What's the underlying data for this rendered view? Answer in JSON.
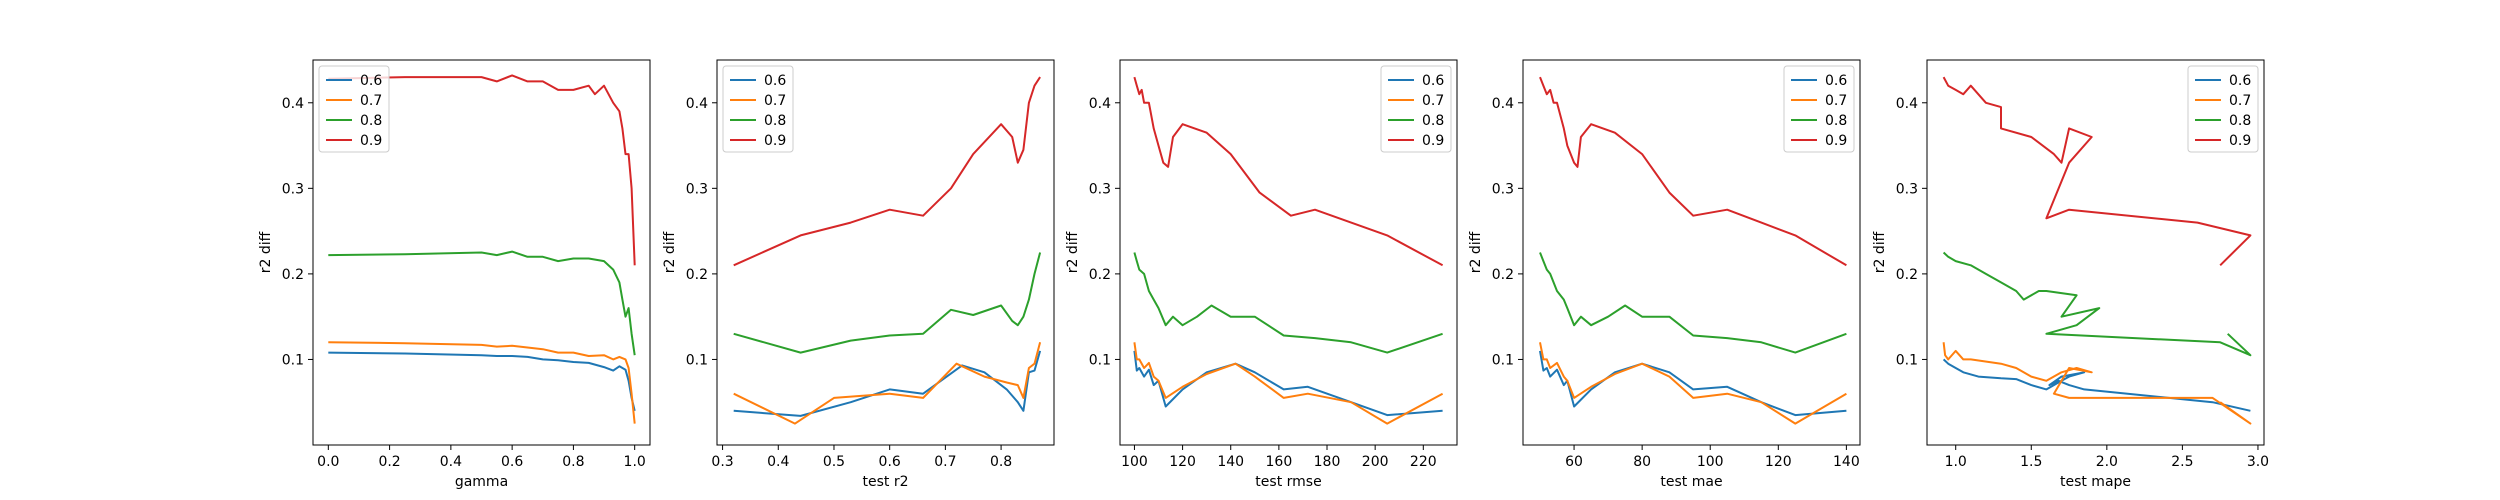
{
  "chart_data": [
    {
      "type": "line",
      "title": "",
      "xlabel": "gamma",
      "ylabel": "r2 diff",
      "xlim": [
        -0.05,
        1.05
      ],
      "ylim": [
        0.0,
        0.45
      ],
      "xticks": [
        0.0,
        0.2,
        0.4,
        0.6,
        0.8,
        1.0
      ],
      "xtick_labels": [
        "0.0",
        "0.2",
        "0.4",
        "0.6",
        "0.8",
        "1.0"
      ],
      "yticks": [
        0.1,
        0.2,
        0.3,
        0.4
      ],
      "ytick_labels": [
        "0.1",
        "0.2",
        "0.3",
        "0.4"
      ],
      "legend": "top-left",
      "series": [
        {
          "name": "0.6",
          "color": "#1f77b4",
          "x": [
            0.0,
            0.25,
            0.5,
            0.55,
            0.6,
            0.65,
            0.7,
            0.75,
            0.8,
            0.85,
            0.9,
            0.93,
            0.95,
            0.97,
            0.98,
            0.99,
            1.0
          ],
          "y": [
            0.108,
            0.107,
            0.105,
            0.104,
            0.104,
            0.103,
            0.1,
            0.099,
            0.097,
            0.096,
            0.091,
            0.087,
            0.092,
            0.088,
            0.075,
            0.055,
            0.04
          ]
        },
        {
          "name": "0.7",
          "color": "#ff7f0e",
          "x": [
            0.0,
            0.25,
            0.5,
            0.55,
            0.6,
            0.65,
            0.7,
            0.75,
            0.8,
            0.85,
            0.9,
            0.93,
            0.95,
            0.97,
            0.98,
            0.99,
            1.0
          ],
          "y": [
            0.12,
            0.119,
            0.117,
            0.115,
            0.116,
            0.114,
            0.112,
            0.108,
            0.108,
            0.104,
            0.105,
            0.1,
            0.103,
            0.1,
            0.09,
            0.06,
            0.025
          ]
        },
        {
          "name": "0.8",
          "color": "#2ca02c",
          "x": [
            0.0,
            0.25,
            0.5,
            0.55,
            0.6,
            0.65,
            0.7,
            0.75,
            0.8,
            0.85,
            0.9,
            0.93,
            0.95,
            0.96,
            0.97,
            0.98,
            0.99,
            1.0
          ],
          "y": [
            0.222,
            0.223,
            0.225,
            0.222,
            0.226,
            0.22,
            0.22,
            0.215,
            0.218,
            0.218,
            0.215,
            0.205,
            0.19,
            0.17,
            0.15,
            0.16,
            0.13,
            0.105
          ]
        },
        {
          "name": "0.9",
          "color": "#d62728",
          "x": [
            0.0,
            0.25,
            0.5,
            0.55,
            0.6,
            0.65,
            0.7,
            0.75,
            0.8,
            0.85,
            0.87,
            0.9,
            0.93,
            0.95,
            0.96,
            0.97,
            0.98,
            0.99,
            1.0
          ],
          "y": [
            0.428,
            0.43,
            0.43,
            0.425,
            0.432,
            0.425,
            0.425,
            0.415,
            0.415,
            0.42,
            0.41,
            0.42,
            0.4,
            0.39,
            0.37,
            0.34,
            0.34,
            0.3,
            0.21
          ]
        }
      ]
    },
    {
      "type": "line",
      "title": "",
      "xlabel": "test r2",
      "ylabel": "r2 diff",
      "xlim": [
        0.29,
        0.895
      ],
      "ylim": [
        0.0,
        0.45
      ],
      "xticks": [
        0.3,
        0.4,
        0.5,
        0.6,
        0.7,
        0.8
      ],
      "xtick_labels": [
        "0.3",
        "0.4",
        "0.5",
        "0.6",
        "0.7",
        "0.8"
      ],
      "yticks": [
        0.1,
        0.2,
        0.3,
        0.4
      ],
      "ytick_labels": [
        "0.1",
        "0.2",
        "0.3",
        "0.4"
      ],
      "legend": "top-left",
      "series": [
        {
          "name": "0.6",
          "color": "#1f77b4",
          "x": [
            0.32,
            0.44,
            0.53,
            0.6,
            0.66,
            0.73,
            0.77,
            0.81,
            0.83,
            0.84,
            0.85,
            0.86,
            0.87
          ],
          "y": [
            0.04,
            0.034,
            0.05,
            0.065,
            0.06,
            0.093,
            0.085,
            0.065,
            0.05,
            0.04,
            0.085,
            0.087,
            0.11
          ]
        },
        {
          "name": "0.7",
          "color": "#ff7f0e",
          "x": [
            0.32,
            0.43,
            0.5,
            0.6,
            0.66,
            0.72,
            0.77,
            0.81,
            0.83,
            0.84,
            0.85,
            0.86,
            0.87
          ],
          "y": [
            0.06,
            0.025,
            0.055,
            0.06,
            0.055,
            0.095,
            0.08,
            0.073,
            0.07,
            0.055,
            0.09,
            0.095,
            0.12
          ]
        },
        {
          "name": "0.8",
          "color": "#2ca02c",
          "x": [
            0.32,
            0.44,
            0.53,
            0.6,
            0.66,
            0.71,
            0.75,
            0.8,
            0.82,
            0.83,
            0.84,
            0.85,
            0.86,
            0.87
          ],
          "y": [
            0.13,
            0.108,
            0.122,
            0.128,
            0.13,
            0.158,
            0.152,
            0.163,
            0.145,
            0.14,
            0.15,
            0.17,
            0.2,
            0.225
          ]
        },
        {
          "name": "0.9",
          "color": "#d62728",
          "x": [
            0.32,
            0.44,
            0.53,
            0.6,
            0.66,
            0.71,
            0.75,
            0.8,
            0.82,
            0.83,
            0.84,
            0.85,
            0.86,
            0.87
          ],
          "y": [
            0.21,
            0.245,
            0.26,
            0.275,
            0.268,
            0.3,
            0.34,
            0.375,
            0.36,
            0.33,
            0.345,
            0.4,
            0.42,
            0.43
          ]
        }
      ]
    },
    {
      "type": "line",
      "title": "",
      "xlabel": "test rmse",
      "ylabel": "r2 diff",
      "xlim": [
        94,
        234
      ],
      "ylim": [
        0.0,
        0.45
      ],
      "xticks": [
        100,
        120,
        140,
        160,
        180,
        200,
        220
      ],
      "xtick_labels": [
        "100",
        "120",
        "140",
        "160",
        "180",
        "200",
        "220"
      ],
      "yticks": [
        0.1,
        0.2,
        0.3,
        0.4
      ],
      "ytick_labels": [
        "0.1",
        "0.2",
        "0.3",
        "0.4"
      ],
      "legend": "top-right",
      "series": [
        {
          "name": "0.6",
          "color": "#1f77b4",
          "x": [
            100,
            101,
            102,
            104,
            106,
            108,
            110,
            113,
            120,
            130,
            142,
            150,
            162,
            172,
            190,
            205,
            228
          ],
          "y": [
            0.11,
            0.087,
            0.09,
            0.08,
            0.088,
            0.07,
            0.075,
            0.045,
            0.065,
            0.085,
            0.095,
            0.085,
            0.065,
            0.068,
            0.05,
            0.035,
            0.04
          ]
        },
        {
          "name": "0.7",
          "color": "#ff7f0e",
          "x": [
            100,
            101,
            102,
            104,
            106,
            108,
            110,
            113,
            120,
            130,
            142,
            150,
            162,
            172,
            190,
            205,
            228
          ],
          "y": [
            0.12,
            0.1,
            0.1,
            0.09,
            0.096,
            0.08,
            0.075,
            0.055,
            0.068,
            0.083,
            0.095,
            0.08,
            0.055,
            0.06,
            0.05,
            0.025,
            0.06
          ]
        },
        {
          "name": "0.8",
          "color": "#2ca02c",
          "x": [
            100,
            101,
            102,
            104,
            106,
            108,
            110,
            113,
            116,
            120,
            126,
            132,
            140,
            150,
            162,
            175,
            190,
            205,
            228
          ],
          "y": [
            0.225,
            0.215,
            0.205,
            0.2,
            0.18,
            0.17,
            0.16,
            0.14,
            0.15,
            0.14,
            0.15,
            0.163,
            0.15,
            0.15,
            0.128,
            0.125,
            0.12,
            0.108,
            0.13
          ]
        },
        {
          "name": "0.9",
          "color": "#d62728",
          "x": [
            100,
            101,
            102,
            103,
            104,
            106,
            108,
            110,
            112,
            114,
            116,
            120,
            130,
            140,
            152,
            165,
            175,
            190,
            205,
            228
          ],
          "y": [
            0.43,
            0.42,
            0.41,
            0.415,
            0.4,
            0.4,
            0.37,
            0.35,
            0.33,
            0.325,
            0.36,
            0.375,
            0.365,
            0.34,
            0.295,
            0.268,
            0.275,
            0.26,
            0.245,
            0.21
          ]
        }
      ]
    },
    {
      "type": "line",
      "title": "",
      "xlabel": "test mae",
      "ylabel": "r2 diff",
      "xlim": [
        45,
        144
      ],
      "ylim": [
        0.0,
        0.45
      ],
      "xticks": [
        60,
        80,
        100,
        120,
        140
      ],
      "xtick_labels": [
        "60",
        "80",
        "100",
        "120",
        "140"
      ],
      "yticks": [
        0.1,
        0.2,
        0.3,
        0.4
      ],
      "ytick_labels": [
        "0.1",
        "0.2",
        "0.3",
        "0.4"
      ],
      "legend": "top-right",
      "series": [
        {
          "name": "0.6",
          "color": "#1f77b4",
          "x": [
            50,
            51,
            52,
            53,
            55,
            57,
            58,
            60,
            65,
            72,
            80,
            88,
            95,
            105,
            115,
            125,
            140
          ],
          "y": [
            0.11,
            0.087,
            0.09,
            0.08,
            0.088,
            0.07,
            0.075,
            0.045,
            0.065,
            0.085,
            0.095,
            0.085,
            0.065,
            0.068,
            0.05,
            0.035,
            0.04
          ]
        },
        {
          "name": "0.7",
          "color": "#ff7f0e",
          "x": [
            50,
            51,
            52,
            53,
            55,
            57,
            58,
            60,
            65,
            72,
            80,
            88,
            95,
            105,
            115,
            125,
            140
          ],
          "y": [
            0.12,
            0.1,
            0.1,
            0.09,
            0.096,
            0.08,
            0.075,
            0.055,
            0.068,
            0.083,
            0.095,
            0.08,
            0.055,
            0.06,
            0.05,
            0.025,
            0.06
          ]
        },
        {
          "name": "0.8",
          "color": "#2ca02c",
          "x": [
            50,
            51,
            52,
            53,
            55,
            57,
            58,
            60,
            62,
            65,
            70,
            75,
            80,
            88,
            95,
            105,
            115,
            125,
            140
          ],
          "y": [
            0.225,
            0.215,
            0.205,
            0.2,
            0.18,
            0.17,
            0.16,
            0.14,
            0.15,
            0.14,
            0.15,
            0.163,
            0.15,
            0.15,
            0.128,
            0.125,
            0.12,
            0.108,
            0.13
          ]
        },
        {
          "name": "0.9",
          "color": "#d62728",
          "x": [
            50,
            51,
            52,
            53,
            54,
            55,
            57,
            58,
            60,
            61,
            62,
            65,
            72,
            80,
            88,
            95,
            105,
            115,
            125,
            140
          ],
          "y": [
            0.43,
            0.42,
            0.41,
            0.415,
            0.4,
            0.4,
            0.37,
            0.35,
            0.33,
            0.325,
            0.36,
            0.375,
            0.365,
            0.34,
            0.295,
            0.268,
            0.275,
            0.26,
            0.245,
            0.21
          ]
        }
      ]
    },
    {
      "type": "line",
      "title": "",
      "xlabel": "test mape",
      "ylabel": "r2 diff",
      "xlim": [
        0.81,
        3.04
      ],
      "ylim": [
        0.0,
        0.45
      ],
      "xticks": [
        1.0,
        1.5,
        2.0,
        2.5,
        3.0
      ],
      "xtick_labels": [
        "1.0",
        "1.5",
        "2.0",
        "2.5",
        "3.0"
      ],
      "yticks": [
        0.1,
        0.2,
        0.3,
        0.4
      ],
      "ytick_labels": [
        "0.1",
        "0.2",
        "0.3",
        "0.4"
      ],
      "legend": "top-right",
      "series": [
        {
          "name": "0.6",
          "color": "#1f77b4",
          "x": [
            0.92,
            0.95,
            1.0,
            1.05,
            1.15,
            1.3,
            1.4,
            1.5,
            1.6,
            1.7,
            1.75,
            1.85,
            1.7,
            1.62,
            1.68,
            1.75,
            1.85,
            2.7,
            2.95
          ],
          "y": [
            0.1,
            0.095,
            0.09,
            0.085,
            0.08,
            0.078,
            0.077,
            0.07,
            0.065,
            0.075,
            0.08,
            0.085,
            0.08,
            0.07,
            0.075,
            0.07,
            0.065,
            0.05,
            0.04
          ]
        },
        {
          "name": "0.7",
          "color": "#ff7f0e",
          "x": [
            0.92,
            0.93,
            0.95,
            1.0,
            1.05,
            1.1,
            1.3,
            1.4,
            1.5,
            1.6,
            1.7,
            1.8,
            1.9,
            1.75,
            1.65,
            1.75,
            2.7,
            2.95,
            2.75
          ],
          "y": [
            0.12,
            0.105,
            0.1,
            0.11,
            0.1,
            0.1,
            0.095,
            0.09,
            0.08,
            0.075,
            0.085,
            0.09,
            0.085,
            0.09,
            0.06,
            0.055,
            0.055,
            0.025,
            0.05
          ]
        },
        {
          "name": "0.8",
          "color": "#2ca02c",
          "x": [
            0.92,
            0.95,
            1.0,
            1.1,
            1.2,
            1.3,
            1.4,
            1.45,
            1.55,
            1.6,
            1.8,
            1.7,
            1.95,
            1.8,
            1.6,
            2.75,
            2.95,
            2.8
          ],
          "y": [
            0.225,
            0.22,
            0.215,
            0.21,
            0.2,
            0.19,
            0.18,
            0.17,
            0.18,
            0.18,
            0.175,
            0.15,
            0.16,
            0.14,
            0.13,
            0.12,
            0.105,
            0.13
          ]
        },
        {
          "name": "0.9",
          "color": "#d62728",
          "x": [
            0.92,
            0.95,
            1.0,
            1.05,
            1.1,
            1.2,
            1.3,
            1.3,
            1.5,
            1.65,
            1.7,
            1.75,
            1.9,
            1.75,
            1.6,
            1.75,
            2.6,
            2.95,
            2.75
          ],
          "y": [
            0.43,
            0.42,
            0.415,
            0.41,
            0.42,
            0.4,
            0.395,
            0.37,
            0.36,
            0.34,
            0.33,
            0.37,
            0.36,
            0.33,
            0.265,
            0.275,
            0.26,
            0.245,
            0.21
          ]
        }
      ]
    }
  ]
}
